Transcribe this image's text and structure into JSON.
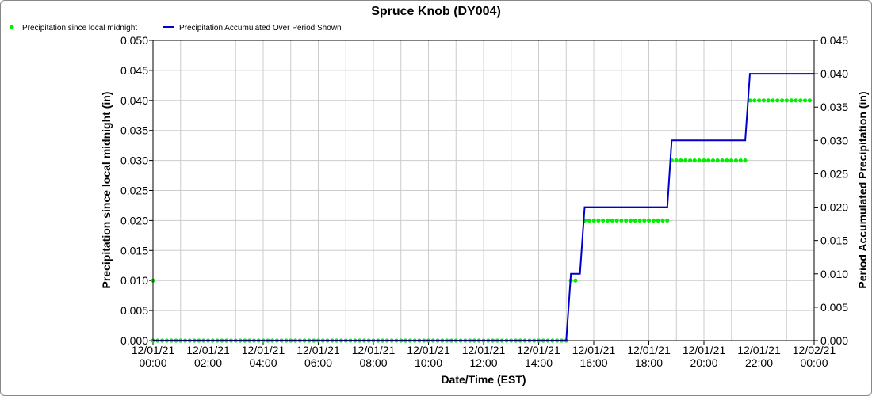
{
  "chart_data": {
    "type": "line",
    "title": "Spruce Knob (DY004)",
    "xlabel": "Date/Time (EST)",
    "ylabel_left": "Precipitation since local midnight (in)",
    "ylabel_right": "Period Accumulated Precipitation (in)",
    "x_tick_labels": [
      [
        "12/01/21",
        "00:00"
      ],
      [
        "12/01/21",
        "02:00"
      ],
      [
        "12/01/21",
        "04:00"
      ],
      [
        "12/01/21",
        "06:00"
      ],
      [
        "12/01/21",
        "08:00"
      ],
      [
        "12/01/21",
        "10:00"
      ],
      [
        "12/01/21",
        "12:00"
      ],
      [
        "12/01/21",
        "14:00"
      ],
      [
        "12/01/21",
        "16:00"
      ],
      [
        "12/01/21",
        "18:00"
      ],
      [
        "12/01/21",
        "20:00"
      ],
      [
        "12/01/21",
        "22:00"
      ],
      [
        "12/02/21",
        "00:00"
      ]
    ],
    "x_range_hours": [
      0,
      24
    ],
    "ylim_left": [
      0,
      0.05
    ],
    "y_ticks_left": [
      "0.000",
      "0.005",
      "0.010",
      "0.015",
      "0.020",
      "0.025",
      "0.030",
      "0.035",
      "0.040",
      "0.045",
      "0.050"
    ],
    "ylim_right": [
      0,
      0.045
    ],
    "y_ticks_right": [
      "0.000",
      "0.005",
      "0.010",
      "0.015",
      "0.020",
      "0.025",
      "0.030",
      "0.035",
      "0.040",
      "0.045"
    ],
    "grid": true,
    "legend_position": "top-left",
    "series": [
      {
        "name": "Precipitation since local midnight",
        "style": "points",
        "color": "#00ee00",
        "axis": "left",
        "segments": [
          {
            "x_start_hour": 0,
            "x_end_hour": 15.0,
            "y": 0.0
          },
          {
            "x_start_hour": 15.17,
            "x_end_hour": 15.5,
            "y": 0.01
          },
          {
            "x_start_hour": 15.67,
            "x_end_hour": 18.67,
            "y": 0.02
          },
          {
            "x_start_hour": 18.83,
            "x_end_hour": 21.5,
            "y": 0.03
          },
          {
            "x_start_hour": 21.67,
            "x_end_hour": 24.0,
            "y": 0.04
          }
        ],
        "note_point": {
          "hour": 0,
          "y": 0.01
        }
      },
      {
        "name": "Precipitation Accumulated Over Period Shown",
        "style": "step-line",
        "color": "#0000cc",
        "axis": "right",
        "points": [
          [
            0,
            0.0
          ],
          [
            15.0,
            0.0
          ],
          [
            15.17,
            0.01
          ],
          [
            15.5,
            0.01
          ],
          [
            15.67,
            0.02
          ],
          [
            18.67,
            0.02
          ],
          [
            18.83,
            0.03
          ],
          [
            21.5,
            0.03
          ],
          [
            21.67,
            0.04
          ],
          [
            24.0,
            0.04
          ]
        ]
      }
    ]
  }
}
